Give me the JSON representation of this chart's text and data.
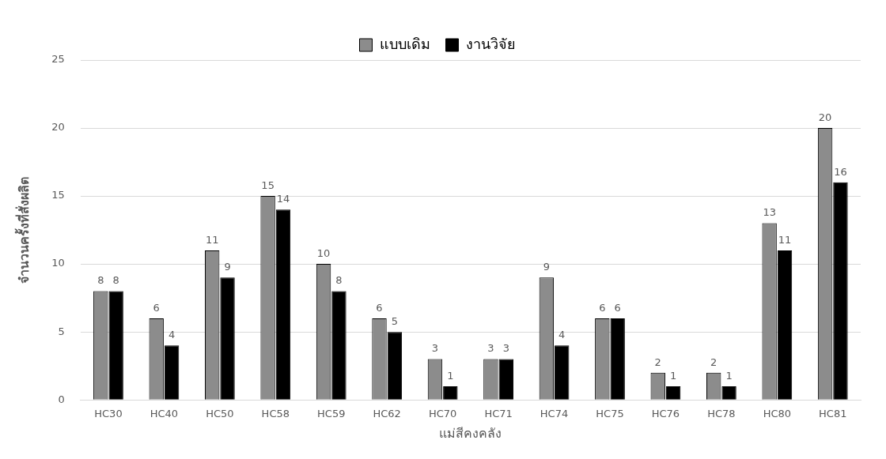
{
  "chart_data": {
    "type": "bar",
    "xlabel": "แม่สีคงคลัง",
    "ylabel": "จำนวนครั้งที่สั่งผลิต",
    "categories": [
      "HC30",
      "HC40",
      "HC50",
      "HC58",
      "HC59",
      "HC62",
      "HC70",
      "HC71",
      "HC74",
      "HC75",
      "HC76",
      "HC78",
      "HC80",
      "HC81"
    ],
    "series": [
      {
        "name": "แบบเดิม",
        "color": "#8c8c8c",
        "values": [
          8,
          6,
          11,
          15,
          10,
          6,
          3,
          3,
          9,
          6,
          2,
          2,
          13,
          20
        ]
      },
      {
        "name": "งานวิจัย",
        "color": "#000000",
        "values": [
          8,
          4,
          9,
          14,
          8,
          5,
          1,
          3,
          4,
          6,
          1,
          1,
          11,
          16
        ]
      }
    ],
    "ylim": [
      0,
      25
    ],
    "yticks": [
      0,
      5,
      10,
      15,
      20,
      25
    ],
    "grid": "y",
    "legend": "top",
    "data_labels": true
  }
}
